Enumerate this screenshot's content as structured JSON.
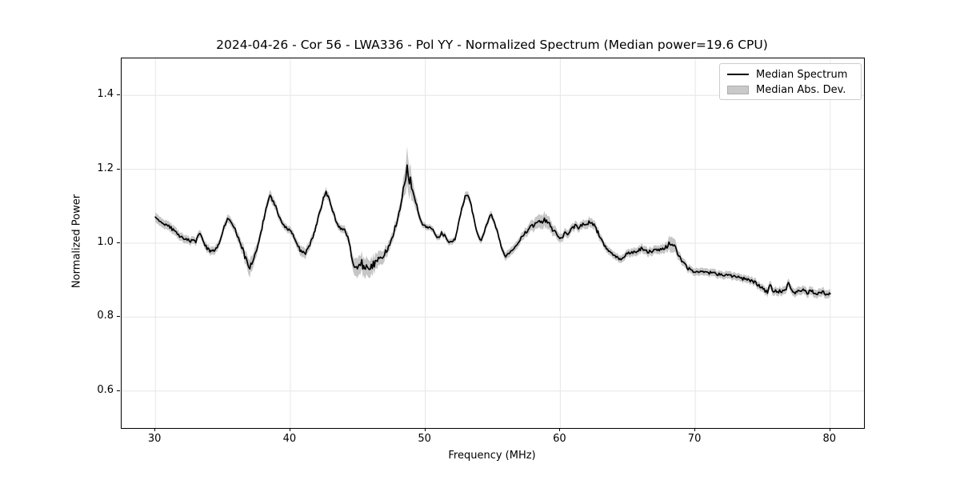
{
  "figure": {
    "kind": "matplotlib-line-plot",
    "background": "#ffffff"
  },
  "colors": {
    "line": "#000000",
    "band": "#c6c6c6",
    "grid": "#e6e6e6",
    "spine": "#000000",
    "legend_border": "#cccccc",
    "legend_patch": "#c9c9c9"
  },
  "chart_data": {
    "type": "line",
    "title": "2024-04-26 - Cor 56 - LWA336 - Pol YY - Normalized Spectrum (Median power=19.6 CPU)",
    "xlabel": "Frequency (MHz)",
    "ylabel": "Normalized Power",
    "xlim": [
      27.5,
      82.5
    ],
    "ylim": [
      0.5,
      1.5
    ],
    "xticks": [
      30,
      40,
      50,
      60,
      70,
      80
    ],
    "yticks": [
      0.6,
      0.8,
      1.0,
      1.2,
      1.4
    ],
    "grid": true,
    "legend": {
      "position": "upper right",
      "entries": [
        {
          "label": "Median Spectrum",
          "type": "line",
          "color": "#000000"
        },
        {
          "label": "Median Abs. Dev.",
          "type": "patch",
          "color": "#c9c9c9"
        }
      ]
    },
    "series": [
      {
        "name": "Median Spectrum",
        "note": "points are [frequency_MHz, median_power, mad_halfwidth]; shaded band = median ± MAD",
        "noise_amplitude_fraction_of_mad": 0.45,
        "points": [
          [
            30.0,
            1.072,
            0.013
          ],
          [
            30.2,
            1.065,
            0.013
          ],
          [
            30.4,
            1.062,
            0.012
          ],
          [
            30.7,
            1.053,
            0.012
          ],
          [
            31.0,
            1.045,
            0.012
          ],
          [
            31.4,
            1.032,
            0.012
          ],
          [
            31.8,
            1.018,
            0.011
          ],
          [
            32.2,
            1.012,
            0.011
          ],
          [
            32.6,
            1.007,
            0.01
          ],
          [
            33.0,
            1.004,
            0.01
          ],
          [
            33.3,
            1.03,
            0.01
          ],
          [
            33.6,
            1.0,
            0.01
          ],
          [
            33.9,
            0.983,
            0.011
          ],
          [
            34.2,
            0.976,
            0.011
          ],
          [
            34.5,
            0.983,
            0.011
          ],
          [
            34.8,
            1.008,
            0.01
          ],
          [
            35.1,
            1.045,
            0.01
          ],
          [
            35.35,
            1.067,
            0.011
          ],
          [
            35.6,
            1.058,
            0.011
          ],
          [
            36.0,
            1.03,
            0.012
          ],
          [
            36.4,
            0.99,
            0.015
          ],
          [
            36.7,
            0.958,
            0.018
          ],
          [
            37.0,
            0.938,
            0.023
          ],
          [
            37.3,
            0.952,
            0.018
          ],
          [
            37.6,
            0.996,
            0.014
          ],
          [
            37.9,
            1.042,
            0.012
          ],
          [
            38.2,
            1.096,
            0.012
          ],
          [
            38.5,
            1.13,
            0.014
          ],
          [
            38.75,
            1.112,
            0.012
          ],
          [
            39.0,
            1.092,
            0.011
          ],
          [
            39.3,
            1.06,
            0.01
          ],
          [
            39.6,
            1.044,
            0.01
          ],
          [
            39.9,
            1.035,
            0.01
          ],
          [
            40.2,
            1.022,
            0.01
          ],
          [
            40.5,
            0.996,
            0.012
          ],
          [
            40.8,
            0.978,
            0.014
          ],
          [
            41.05,
            0.973,
            0.014
          ],
          [
            41.3,
            0.981,
            0.012
          ],
          [
            41.6,
            1.01,
            0.011
          ],
          [
            41.9,
            1.044,
            0.01
          ],
          [
            42.2,
            1.086,
            0.01
          ],
          [
            42.45,
            1.12,
            0.011
          ],
          [
            42.65,
            1.136,
            0.012
          ],
          [
            42.9,
            1.117,
            0.011
          ],
          [
            43.2,
            1.08,
            0.01
          ],
          [
            43.5,
            1.048,
            0.01
          ],
          [
            43.8,
            1.037,
            0.01
          ],
          [
            44.1,
            1.034,
            0.011
          ],
          [
            44.35,
            1.005,
            0.014
          ],
          [
            44.6,
            0.956,
            0.019
          ],
          [
            44.9,
            0.928,
            0.026
          ],
          [
            45.1,
            0.934,
            0.026
          ],
          [
            45.3,
            0.946,
            0.023
          ],
          [
            45.5,
            0.929,
            0.026
          ],
          [
            45.7,
            0.934,
            0.024
          ],
          [
            46.0,
            0.938,
            0.023
          ],
          [
            46.3,
            0.946,
            0.021
          ],
          [
            46.6,
            0.956,
            0.019
          ],
          [
            46.9,
            0.966,
            0.017
          ],
          [
            47.2,
            0.984,
            0.015
          ],
          [
            47.6,
            1.022,
            0.013
          ],
          [
            47.9,
            1.06,
            0.014
          ],
          [
            48.2,
            1.11,
            0.018
          ],
          [
            48.45,
            1.158,
            0.03
          ],
          [
            48.65,
            1.19,
            0.05
          ],
          [
            48.9,
            1.17,
            0.038
          ],
          [
            49.15,
            1.122,
            0.022
          ],
          [
            49.45,
            1.09,
            0.015
          ],
          [
            49.7,
            1.058,
            0.01
          ],
          [
            49.9,
            1.046,
            0.008
          ],
          [
            50.2,
            1.044,
            0.008
          ],
          [
            50.5,
            1.04,
            0.008
          ],
          [
            50.7,
            1.026,
            0.008
          ],
          [
            50.95,
            1.014,
            0.008
          ],
          [
            51.2,
            1.027,
            0.008
          ],
          [
            51.5,
            1.018,
            0.008
          ],
          [
            51.75,
            1.005,
            0.008
          ],
          [
            52.0,
            1.002,
            0.008
          ],
          [
            52.2,
            1.012,
            0.008
          ],
          [
            52.45,
            1.05,
            0.009
          ],
          [
            52.7,
            1.095,
            0.01
          ],
          [
            52.95,
            1.125,
            0.011
          ],
          [
            53.15,
            1.128,
            0.011
          ],
          [
            53.4,
            1.102,
            0.01
          ],
          [
            53.7,
            1.048,
            0.009
          ],
          [
            53.95,
            1.018,
            0.009
          ],
          [
            54.15,
            1.009,
            0.009
          ],
          [
            54.45,
            1.038,
            0.009
          ],
          [
            54.7,
            1.066,
            0.01
          ],
          [
            54.9,
            1.077,
            0.01
          ],
          [
            55.15,
            1.055,
            0.009
          ],
          [
            55.45,
            1.015,
            0.009
          ],
          [
            55.7,
            0.983,
            0.01
          ],
          [
            55.95,
            0.966,
            0.011
          ],
          [
            56.2,
            0.97,
            0.011
          ],
          [
            56.5,
            0.985,
            0.011
          ],
          [
            56.8,
            0.999,
            0.011
          ],
          [
            57.1,
            1.014,
            0.011
          ],
          [
            57.4,
            1.028,
            0.012
          ],
          [
            57.7,
            1.038,
            0.013
          ],
          [
            58.0,
            1.048,
            0.015
          ],
          [
            58.3,
            1.057,
            0.017
          ],
          [
            58.6,
            1.063,
            0.019
          ],
          [
            58.9,
            1.061,
            0.019
          ],
          [
            59.2,
            1.05,
            0.017
          ],
          [
            59.5,
            1.034,
            0.014
          ],
          [
            59.8,
            1.019,
            0.012
          ],
          [
            60.05,
            1.013,
            0.011
          ],
          [
            60.35,
            1.028,
            0.011
          ],
          [
            60.55,
            1.021,
            0.011
          ],
          [
            60.85,
            1.038,
            0.011
          ],
          [
            61.1,
            1.047,
            0.011
          ],
          [
            61.35,
            1.041,
            0.011
          ],
          [
            61.6,
            1.048,
            0.011
          ],
          [
            61.9,
            1.052,
            0.012
          ],
          [
            62.2,
            1.056,
            0.013
          ],
          [
            62.5,
            1.047,
            0.012
          ],
          [
            62.8,
            1.029,
            0.011
          ],
          [
            63.1,
            1.003,
            0.01
          ],
          [
            63.5,
            0.982,
            0.01
          ],
          [
            63.9,
            0.969,
            0.01
          ],
          [
            64.2,
            0.96,
            0.01
          ],
          [
            64.5,
            0.957,
            0.01
          ],
          [
            64.9,
            0.972,
            0.01
          ],
          [
            65.3,
            0.975,
            0.011
          ],
          [
            65.7,
            0.979,
            0.011
          ],
          [
            66.0,
            0.986,
            0.011
          ],
          [
            66.3,
            0.978,
            0.011
          ],
          [
            66.7,
            0.978,
            0.011
          ],
          [
            67.1,
            0.982,
            0.011
          ],
          [
            67.5,
            0.986,
            0.012
          ],
          [
            67.9,
            0.991,
            0.013
          ],
          [
            68.2,
            1.001,
            0.022
          ],
          [
            68.45,
            0.992,
            0.018
          ],
          [
            68.7,
            0.974,
            0.013
          ],
          [
            69.0,
            0.954,
            0.011
          ],
          [
            69.4,
            0.934,
            0.01
          ],
          [
            69.7,
            0.926,
            0.01
          ],
          [
            70.0,
            0.923,
            0.01
          ],
          [
            70.4,
            0.922,
            0.01
          ],
          [
            70.8,
            0.921,
            0.01
          ],
          [
            71.2,
            0.919,
            0.01
          ],
          [
            71.6,
            0.917,
            0.01
          ],
          [
            72.0,
            0.916,
            0.01
          ],
          [
            72.4,
            0.912,
            0.01
          ],
          [
            72.8,
            0.909,
            0.01
          ],
          [
            73.2,
            0.907,
            0.01
          ],
          [
            73.6,
            0.904,
            0.01
          ],
          [
            74.0,
            0.901,
            0.01
          ],
          [
            74.4,
            0.894,
            0.01
          ],
          [
            74.8,
            0.884,
            0.01
          ],
          [
            75.1,
            0.876,
            0.01
          ],
          [
            75.35,
            0.864,
            0.011
          ],
          [
            75.55,
            0.887,
            0.011
          ],
          [
            75.8,
            0.867,
            0.011
          ],
          [
            76.1,
            0.871,
            0.011
          ],
          [
            76.4,
            0.867,
            0.011
          ],
          [
            76.65,
            0.87,
            0.011
          ],
          [
            76.9,
            0.896,
            0.011
          ],
          [
            77.15,
            0.869,
            0.011
          ],
          [
            77.4,
            0.865,
            0.011
          ],
          [
            77.7,
            0.871,
            0.011
          ],
          [
            78.0,
            0.873,
            0.011
          ],
          [
            78.3,
            0.867,
            0.011
          ],
          [
            78.6,
            0.871,
            0.011
          ],
          [
            78.9,
            0.865,
            0.011
          ],
          [
            79.2,
            0.864,
            0.011
          ],
          [
            79.5,
            0.867,
            0.011
          ],
          [
            79.8,
            0.861,
            0.011
          ],
          [
            80.0,
            0.863,
            0.011
          ]
        ]
      }
    ]
  }
}
